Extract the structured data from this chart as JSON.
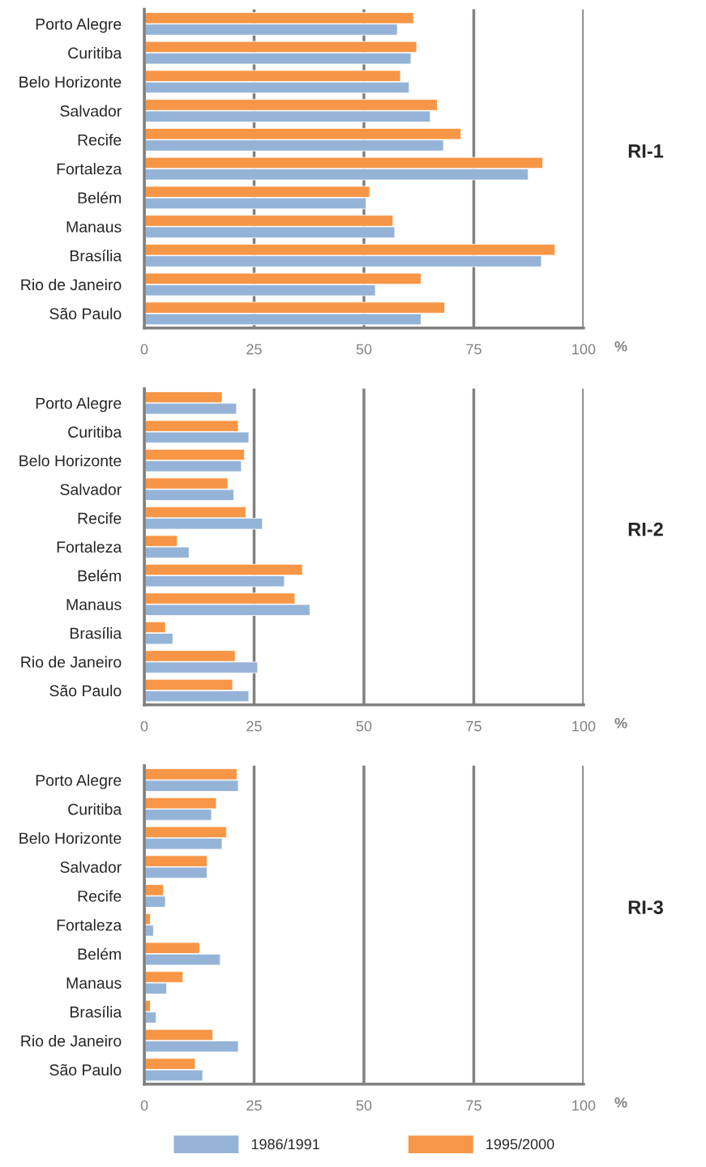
{
  "chart_data": [
    {
      "type": "bar",
      "orientation": "horizontal",
      "ylabel": "RI-1",
      "xlabel": "%",
      "categories": [
        "Porto Alegre",
        "Curitiba",
        "Belo Horizonte",
        "Salvador",
        "Recife",
        "Fortaleza",
        "Belém",
        "Manaus",
        "Brasília",
        "Rio de Janeiro",
        "São Paulo"
      ],
      "series": [
        {
          "name": "1995/2000",
          "color": "#f79646",
          "values": [
            61.3,
            62.0,
            58.3,
            66.7,
            72.1,
            90.7,
            51.3,
            56.6,
            93.5,
            63.0,
            68.4
          ]
        },
        {
          "name": "1986/1991",
          "color": "#95b3d7",
          "values": [
            57.6,
            60.7,
            60.3,
            65.1,
            68.1,
            87.4,
            50.5,
            57.0,
            90.4,
            52.6,
            63.0
          ]
        }
      ],
      "xlim": [
        0,
        100
      ],
      "xticks": [
        0,
        25,
        50,
        75,
        100
      ],
      "grid": "x",
      "legend": "bottom"
    },
    {
      "type": "bar",
      "orientation": "horizontal",
      "ylabel": "RI-2",
      "xlabel": "%",
      "categories": [
        "Porto Alegre",
        "Curitiba",
        "Belo Horizonte",
        "Salvador",
        "Recife",
        "Fortaleza",
        "Belém",
        "Manaus",
        "Brasília",
        "Rio de Janeiro",
        "São Paulo"
      ],
      "series": [
        {
          "color": "#f79646",
          "values": [
            17.7,
            21.4,
            22.8,
            19.0,
            23.1,
            7.5,
            36.0,
            34.3,
            4.8,
            20.7,
            20.1
          ]
        },
        {
          "color": "#95b3d7",
          "values": [
            21.0,
            23.8,
            22.1,
            20.4,
            26.9,
            10.2,
            31.9,
            37.7,
            6.5,
            25.8,
            23.8
          ]
        }
      ],
      "xlim": [
        0,
        100
      ],
      "xticks": [
        0,
        25,
        50,
        75,
        100
      ],
      "grid": "x"
    },
    {
      "type": "bar",
      "orientation": "horizontal",
      "ylabel": "RI-3",
      "xlabel": "%",
      "categories": [
        "Porto Alegre",
        "Curitiba",
        "Belo Horizonte",
        "Salvador",
        "Recife",
        "Fortaleza",
        "Belém",
        "Manaus",
        "Brasília",
        "Rio de Janeiro",
        "São Paulo"
      ],
      "series": [
        {
          "color": "#f79646",
          "values": [
            21.1,
            16.4,
            18.7,
            14.3,
            4.4,
            1.4,
            12.6,
            8.8,
            1.4,
            15.6,
            11.6
          ]
        },
        {
          "color": "#95b3d7",
          "values": [
            21.4,
            15.3,
            17.7,
            14.3,
            4.8,
            2.1,
            17.3,
            5.1,
            2.7,
            21.4,
            13.3
          ]
        }
      ],
      "xlim": [
        0,
        100
      ],
      "xticks": [
        0,
        25,
        50,
        75,
        100
      ],
      "grid": "x"
    }
  ]
}
